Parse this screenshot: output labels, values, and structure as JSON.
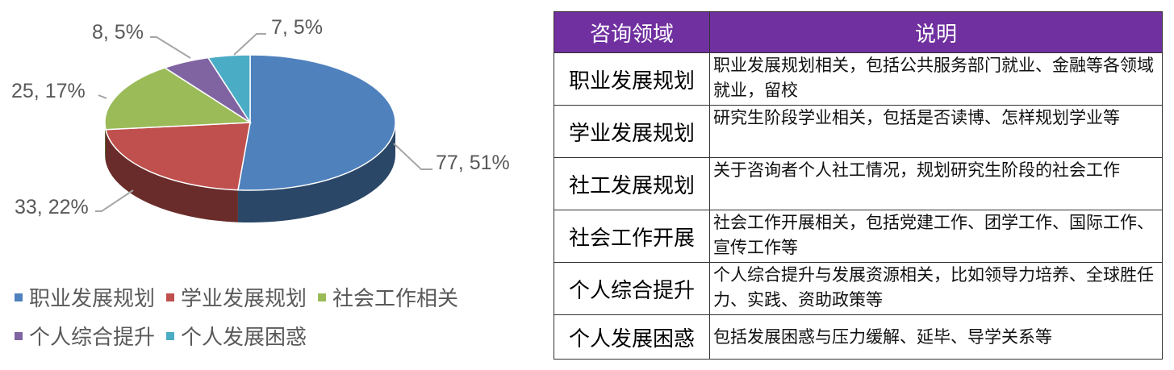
{
  "chart_data": {
    "type": "pie",
    "style": "3d",
    "categories": [
      "职业发展规划",
      "学业发展规划",
      "社会工作相关",
      "个人综合提升",
      "个人发展困惑"
    ],
    "values": [
      77,
      33,
      25,
      8,
      7
    ],
    "percents": [
      51,
      22,
      17,
      5,
      5
    ],
    "data_labels": [
      "77, 51%",
      "33, 22%",
      "25, 17%",
      "8, 5%",
      "7, 5%"
    ],
    "colors": [
      "#4F81BD",
      "#C0504D",
      "#9BBB59",
      "#8064A2",
      "#4BACC6"
    ],
    "legend": "bottom"
  },
  "table": {
    "headers": [
      "咨询领域",
      "说明"
    ],
    "header_color": "#7030A0",
    "rows": [
      {
        "k": "职业发展规划",
        "v": "职业发展规划相关，包括公共服务部门就业、金融等各领域就业，留校"
      },
      {
        "k": "学业发展规划",
        "v": "研究生阶段学业相关，包括是否读博、怎样规划学业等"
      },
      {
        "k": "社工发展规划",
        "v": "关于咨询者个人社工情况，规划研究生阶段的社会工作"
      },
      {
        "k": "社会工作开展",
        "v": "社会工作开展相关，包括党建工作、团学工作、国际工作、宣传工作等"
      },
      {
        "k": "个人综合提升",
        "v": "个人综合提升与发展资源相关，比如领导力培养、全球胜任力、实践、资助政策等"
      },
      {
        "k": "个人发展困惑",
        "v": "包括发展困惑与压力缓解、延毕、导学关系等"
      }
    ]
  }
}
